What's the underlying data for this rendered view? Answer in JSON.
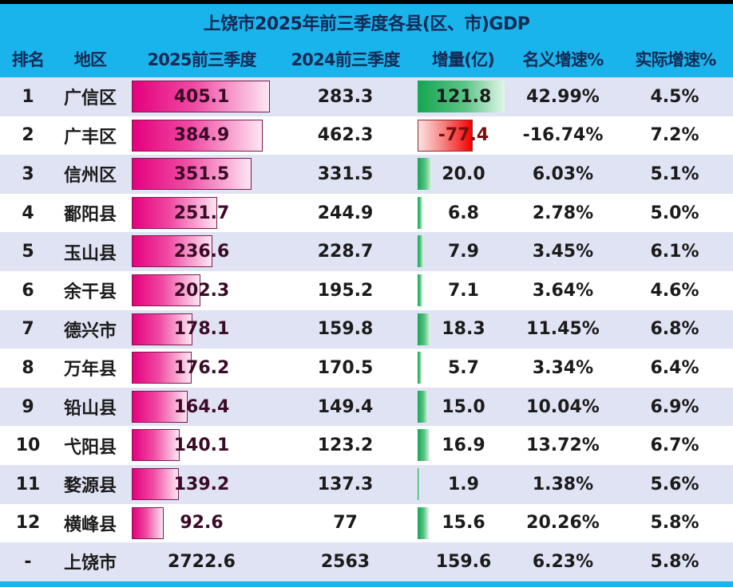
{
  "title": "上饶市2025年前三季度各县(区、市)GDP",
  "headers": {
    "rank": "排名",
    "region": "地区",
    "gdp_2025": "2025前三季度",
    "gdp_2024": "2024前三季度",
    "increase": "增量(亿)",
    "nominal_growth": "名义增速%",
    "real_growth": "实际增速%"
  },
  "colors": {
    "header_bg": "#1ab4ec",
    "header_text": "#142a55",
    "row_alt": "#dfe3f3",
    "row_plain": "#ffffff",
    "bar_2025": "#e5007e",
    "bar_increase_positive": "#16a553",
    "bar_increase_negative": "#f30000"
  },
  "rows": [
    {
      "rank": "1",
      "region": "广信区",
      "gdp_2025": "405.1",
      "gdp_2024": "283.3",
      "increase": "121.8",
      "nominal": "42.99%",
      "real": "4.5%"
    },
    {
      "rank": "2",
      "region": "广丰区",
      "gdp_2025": "384.9",
      "gdp_2024": "462.3",
      "increase": "-77.4",
      "nominal": "-16.74%",
      "real": "7.2%"
    },
    {
      "rank": "3",
      "region": "信州区",
      "gdp_2025": "351.5",
      "gdp_2024": "331.5",
      "increase": "20.0",
      "nominal": "6.03%",
      "real": "5.1%"
    },
    {
      "rank": "4",
      "region": "鄱阳县",
      "gdp_2025": "251.7",
      "gdp_2024": "244.9",
      "increase": "6.8",
      "nominal": "2.78%",
      "real": "5.0%"
    },
    {
      "rank": "5",
      "region": "玉山县",
      "gdp_2025": "236.6",
      "gdp_2024": "228.7",
      "increase": "7.9",
      "nominal": "3.45%",
      "real": "6.1%"
    },
    {
      "rank": "6",
      "region": "余干县",
      "gdp_2025": "202.3",
      "gdp_2024": "195.2",
      "increase": "7.1",
      "nominal": "3.64%",
      "real": "4.6%"
    },
    {
      "rank": "7",
      "region": "德兴市",
      "gdp_2025": "178.1",
      "gdp_2024": "159.8",
      "increase": "18.3",
      "nominal": "11.45%",
      "real": "6.8%"
    },
    {
      "rank": "8",
      "region": "万年县",
      "gdp_2025": "176.2",
      "gdp_2024": "170.5",
      "increase": "5.7",
      "nominal": "3.34%",
      "real": "6.4%"
    },
    {
      "rank": "9",
      "region": "铅山县",
      "gdp_2025": "164.4",
      "gdp_2024": "149.4",
      "increase": "15.0",
      "nominal": "10.04%",
      "real": "6.9%"
    },
    {
      "rank": "10",
      "region": "弋阳县",
      "gdp_2025": "140.1",
      "gdp_2024": "123.2",
      "increase": "16.9",
      "nominal": "13.72%",
      "real": "6.7%"
    },
    {
      "rank": "11",
      "region": "婺源县",
      "gdp_2025": "139.2",
      "gdp_2024": "137.3",
      "increase": "1.9",
      "nominal": "1.38%",
      "real": "5.6%"
    },
    {
      "rank": "12",
      "region": "横峰县",
      "gdp_2025": "92.6",
      "gdp_2024": "77",
      "increase": "15.6",
      "nominal": "20.26%",
      "real": "5.8%"
    }
  ],
  "total": {
    "rank": "-",
    "region": "上饶市",
    "gdp_2025": "2722.6",
    "gdp_2024": "2563",
    "increase": "159.6",
    "nominal": "6.23%",
    "real": "5.8%"
  },
  "chart_data": {
    "type": "table",
    "title": "上饶市2025年前三季度各县(区、市)GDP",
    "columns": [
      "排名",
      "地区",
      "2025前三季度",
      "2024前三季度",
      "增量(亿)",
      "名义增速%",
      "实际增速%"
    ],
    "categories": [
      "广信区",
      "广丰区",
      "信州区",
      "鄱阳县",
      "玉山县",
      "余干县",
      "德兴市",
      "万年县",
      "铅山县",
      "弋阳县",
      "婺源县",
      "横峰县"
    ],
    "series": [
      {
        "name": "2025前三季度",
        "values": [
          405.1,
          384.9,
          351.5,
          251.7,
          236.6,
          202.3,
          178.1,
          176.2,
          164.4,
          140.1,
          139.2,
          92.6
        ],
        "in_cell_bars": true
      },
      {
        "name": "2024前三季度",
        "values": [
          283.3,
          462.3,
          331.5,
          244.9,
          228.7,
          195.2,
          159.8,
          170.5,
          149.4,
          123.2,
          137.3,
          77
        ]
      },
      {
        "name": "增量(亿)",
        "values": [
          121.8,
          -77.4,
          20.0,
          6.8,
          7.9,
          7.1,
          18.3,
          5.7,
          15.0,
          16.9,
          1.9,
          15.6
        ],
        "in_cell_bars": true
      },
      {
        "name": "名义增速%",
        "values": [
          42.99,
          -16.74,
          6.03,
          2.78,
          3.45,
          3.64,
          11.45,
          3.34,
          10.04,
          13.72,
          1.38,
          20.26
        ]
      },
      {
        "name": "实际增速%",
        "values": [
          4.5,
          7.2,
          5.1,
          5.0,
          6.1,
          4.6,
          6.8,
          6.4,
          6.9,
          6.7,
          5.6,
          5.8
        ]
      }
    ],
    "total_row": {
      "region": "上饶市",
      "gdp_2025": 2722.6,
      "gdp_2024": 2563,
      "increase": 159.6,
      "nominal": 6.23,
      "real": 5.8
    }
  }
}
